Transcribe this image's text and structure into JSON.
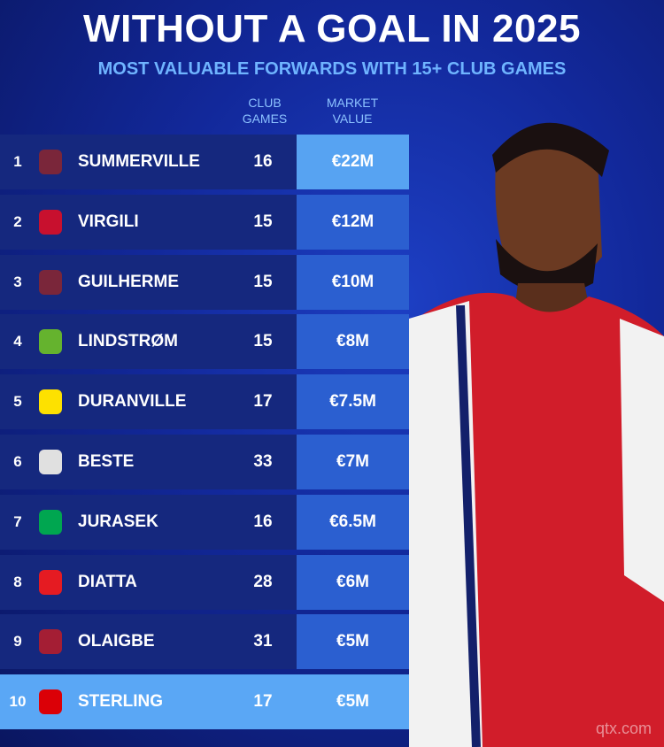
{
  "header": {
    "title": "WITHOUT A GOAL IN 2025",
    "subtitle": "MOST VALUABLE FORWARDS WITH 15+ CLUB GAMES"
  },
  "table": {
    "columns": [
      "CLUB GAMES",
      "MARKET VALUE"
    ],
    "rows": [
      [
        1,
        "SUMMERVILLE",
        16,
        "€22M"
      ],
      [
        2,
        "VIRGILI",
        15,
        "€12M"
      ],
      [
        3,
        "GUILHERME",
        15,
        "€10M"
      ],
      [
        4,
        "LINDSTRØM",
        15,
        "€8M"
      ],
      [
        5,
        "DURANVILLE",
        17,
        "€7.5M"
      ],
      [
        6,
        "BESTE",
        33,
        "€7M"
      ],
      [
        7,
        "JURASEK",
        16,
        "€6.5M"
      ],
      [
        8,
        "DIATTA",
        28,
        "€6M"
      ],
      [
        9,
        "OLAIGBE",
        31,
        "€5M"
      ],
      [
        10,
        "STERLING",
        17,
        "€5M"
      ]
    ]
  },
  "watermark": "qtx.com"
}
